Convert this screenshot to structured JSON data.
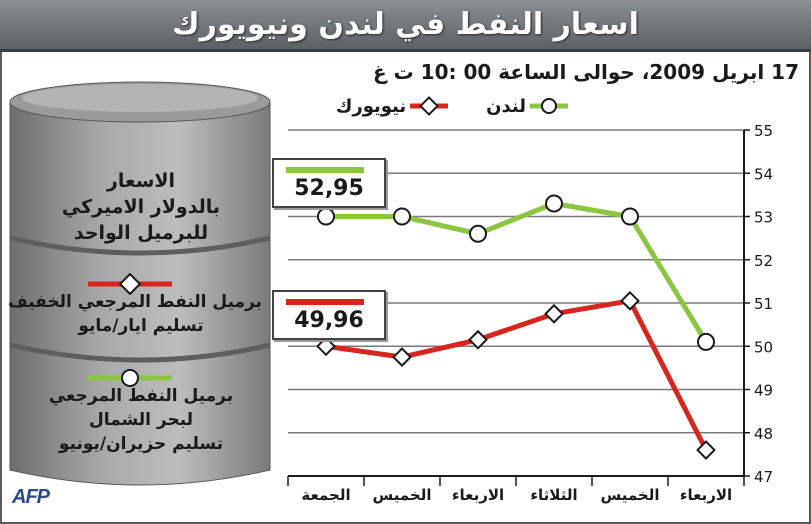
{
  "title": "اسعار النفط في لندن ونيويورك",
  "subtitle": "17 ابريل 2009، حوالى الساعة 00 :10 ت غ",
  "legend": {
    "london": "لندن",
    "newyork": "نيويورك"
  },
  "barrel": {
    "line1": "الاسعار",
    "line2": "بالدولار الاميركي",
    "line3": "للبرميل الواحد",
    "light_line1": "برميل النفط المرجعي الخفيف",
    "light_line2": "تسليم ايار/مايو",
    "north_line1": "برميل النفط المرجعي",
    "north_line2": "لبحر الشمال",
    "north_line3": "تسليم حزيران/يونيو"
  },
  "boxes": {
    "london_value": "52,95",
    "newyork_value": "49,96"
  },
  "source": "AFP",
  "colors": {
    "london": "#8cc63f",
    "newyork": "#d7261e",
    "title_bg": "#6e7378",
    "barrel": "#8c8c8c"
  },
  "chart_data": {
    "type": "line",
    "categories": [
      "الجمعة",
      "الخميس",
      "الاربعاء",
      "الثلاثاء",
      "الخميس",
      "الاربعاء"
    ],
    "series": [
      {
        "name": "لندن",
        "values": [
          53.0,
          53.0,
          52.6,
          53.3,
          53.0,
          50.1
        ]
      },
      {
        "name": "نيويورك",
        "values": [
          50.0,
          49.75,
          50.15,
          50.75,
          51.05,
          47.6
        ]
      }
    ],
    "yticks": [
      "47",
      "48",
      "49",
      "50",
      "51",
      "52",
      "53",
      "54",
      "55"
    ],
    "ylim": [
      47,
      55
    ],
    "grid": true
  }
}
